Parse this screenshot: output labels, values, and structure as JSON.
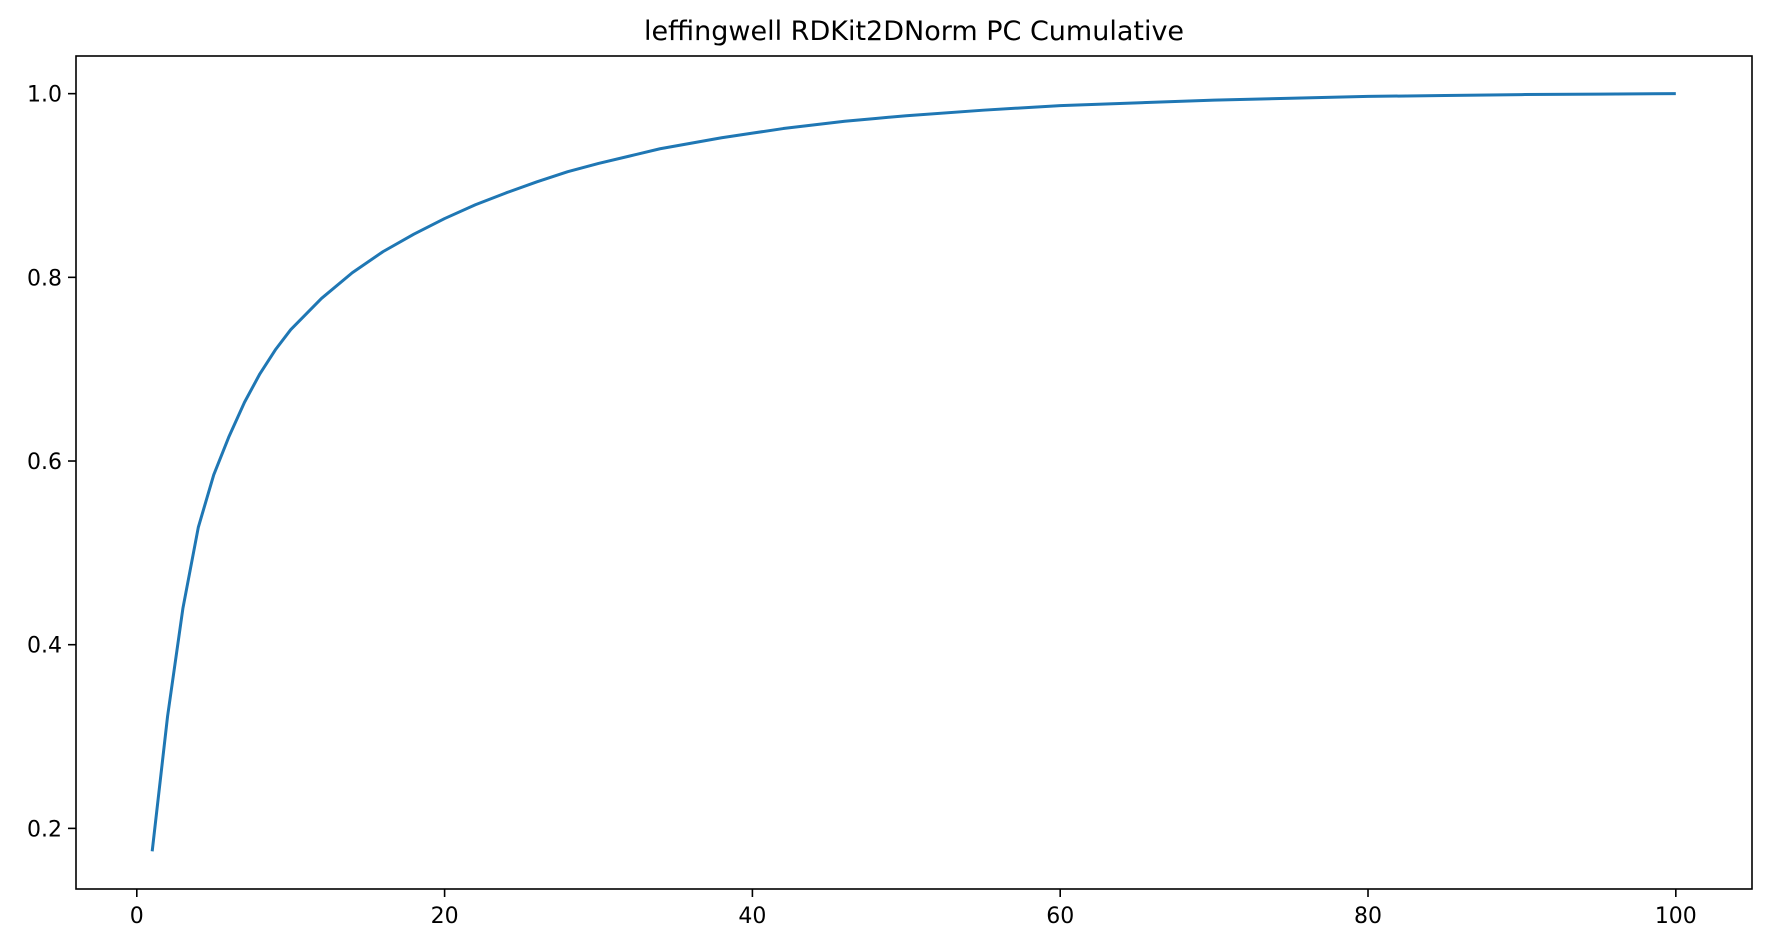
{
  "chart_data": {
    "type": "line",
    "title": "leffingwell RDKit2DNorm PC Cumulative",
    "xlabel": "",
    "ylabel": "",
    "xlim": [
      -3.95,
      104.95
    ],
    "ylim": [
      0.134,
      1.041
    ],
    "xticks": [
      0,
      20,
      40,
      60,
      80,
      100
    ],
    "yticks": [
      0.2,
      0.4,
      0.6,
      0.8,
      1.0
    ],
    "xtick_labels": [
      "0",
      "20",
      "40",
      "60",
      "80",
      "100"
    ],
    "ytick_labels": [
      "0.2",
      "0.4",
      "0.6",
      "0.8",
      "1.0"
    ],
    "grid": false,
    "legend": "none",
    "series": [
      {
        "color": "#1f77b4",
        "x": [
          1,
          2,
          3,
          4,
          5,
          6,
          7,
          8,
          9,
          10,
          12,
          14,
          16,
          18,
          20,
          22,
          24,
          26,
          28,
          30,
          32,
          34,
          36,
          38,
          40,
          42,
          44,
          46,
          48,
          50,
          55,
          60,
          65,
          70,
          75,
          80,
          85,
          90,
          95,
          100
        ],
        "y": [
          0.175,
          0.322,
          0.44,
          0.528,
          0.585,
          0.627,
          0.664,
          0.695,
          0.721,
          0.743,
          0.777,
          0.805,
          0.828,
          0.847,
          0.864,
          0.879,
          0.892,
          0.904,
          0.915,
          0.924,
          0.932,
          0.94,
          0.946,
          0.952,
          0.957,
          0.962,
          0.966,
          0.97,
          0.973,
          0.976,
          0.982,
          0.987,
          0.99,
          0.993,
          0.995,
          0.997,
          0.998,
          0.999,
          0.9995,
          1.0
        ]
      }
    ]
  }
}
